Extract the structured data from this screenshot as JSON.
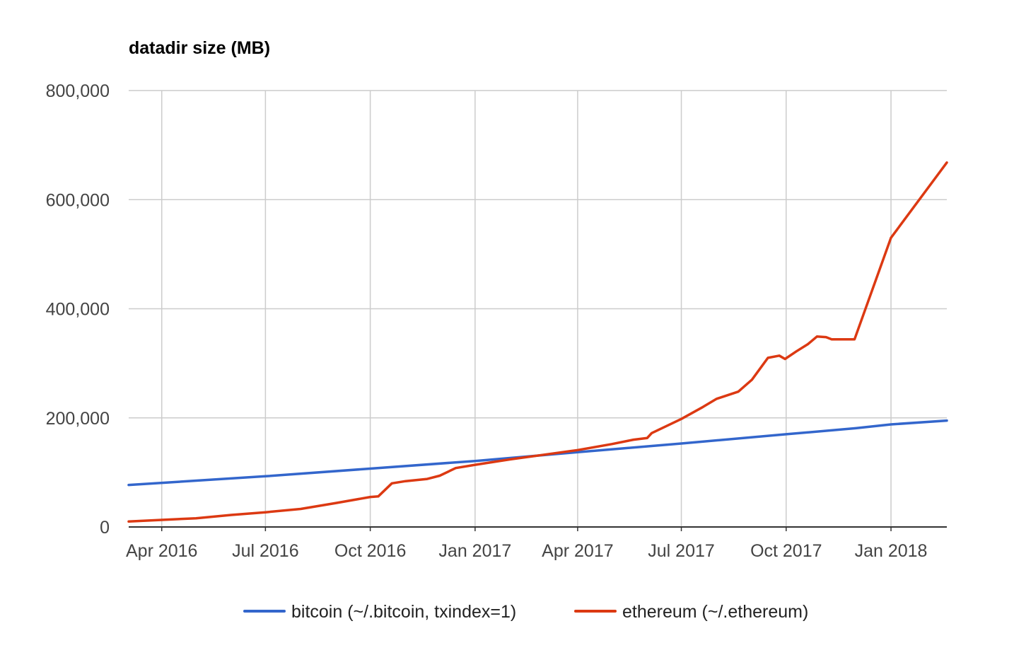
{
  "chart_data": {
    "type": "line",
    "title": "datadir size (MB)",
    "xlabel": "",
    "ylabel": "",
    "x_axis": {
      "type": "date",
      "range": [
        "2016-03-03",
        "2018-02-19"
      ],
      "ticks": [
        {
          "date": "2016-04-01",
          "label": "Apr 2016"
        },
        {
          "date": "2016-07-01",
          "label": "Jul 2016"
        },
        {
          "date": "2016-10-01",
          "label": "Oct 2016"
        },
        {
          "date": "2017-01-01",
          "label": "Jan 2017"
        },
        {
          "date": "2017-04-01",
          "label": "Apr 2017"
        },
        {
          "date": "2017-07-01",
          "label": "Jul 2017"
        },
        {
          "date": "2017-10-01",
          "label": "Oct 2017"
        },
        {
          "date": "2018-01-01",
          "label": "Jan 2018"
        }
      ]
    },
    "y_axis": {
      "range": [
        0,
        800000
      ],
      "ticks": [
        {
          "value": 0,
          "label": "0"
        },
        {
          "value": 200000,
          "label": "200,000"
        },
        {
          "value": 400000,
          "label": "400,000"
        },
        {
          "value": 600000,
          "label": "600,000"
        },
        {
          "value": 800000,
          "label": "800,000"
        }
      ]
    },
    "grid": true,
    "legend_position": "bottom",
    "series": [
      {
        "name": "bitcoin (~/.bitcoin, txindex=1)",
        "color": "#3366cc",
        "points": [
          {
            "x": "2016-03-03",
            "y": 77000
          },
          {
            "x": "2016-07-01",
            "y": 93000
          },
          {
            "x": "2016-10-01",
            "y": 107000
          },
          {
            "x": "2017-01-01",
            "y": 121000
          },
          {
            "x": "2017-04-01",
            "y": 137000
          },
          {
            "x": "2017-07-01",
            "y": 153000
          },
          {
            "x": "2017-10-01",
            "y": 170000
          },
          {
            "x": "2017-12-01",
            "y": 181000
          },
          {
            "x": "2018-01-01",
            "y": 188000
          },
          {
            "x": "2018-02-19",
            "y": 195000
          }
        ]
      },
      {
        "name": "ethereum (~/.ethereum)",
        "color": "#dc3912",
        "points": [
          {
            "x": "2016-03-03",
            "y": 10000
          },
          {
            "x": "2016-04-01",
            "y": 13000
          },
          {
            "x": "2016-05-01",
            "y": 16000
          },
          {
            "x": "2016-06-01",
            "y": 22000
          },
          {
            "x": "2016-07-01",
            "y": 27000
          },
          {
            "x": "2016-08-01",
            "y": 33000
          },
          {
            "x": "2016-09-01",
            "y": 44000
          },
          {
            "x": "2016-10-01",
            "y": 55000
          },
          {
            "x": "2016-10-08",
            "y": 56000
          },
          {
            "x": "2016-10-20",
            "y": 80000
          },
          {
            "x": "2016-11-01",
            "y": 84000
          },
          {
            "x": "2016-11-20",
            "y": 88000
          },
          {
            "x": "2016-12-01",
            "y": 94000
          },
          {
            "x": "2016-12-15",
            "y": 108000
          },
          {
            "x": "2017-01-01",
            "y": 114000
          },
          {
            "x": "2017-02-01",
            "y": 124000
          },
          {
            "x": "2017-03-01",
            "y": 132000
          },
          {
            "x": "2017-04-01",
            "y": 141000
          },
          {
            "x": "2017-05-01",
            "y": 152000
          },
          {
            "x": "2017-05-20",
            "y": 160000
          },
          {
            "x": "2017-06-01",
            "y": 163000
          },
          {
            "x": "2017-06-05",
            "y": 172000
          },
          {
            "x": "2017-07-01",
            "y": 198000
          },
          {
            "x": "2017-07-20",
            "y": 220000
          },
          {
            "x": "2017-08-01",
            "y": 235000
          },
          {
            "x": "2017-08-20",
            "y": 248000
          },
          {
            "x": "2017-09-01",
            "y": 270000
          },
          {
            "x": "2017-09-15",
            "y": 310000
          },
          {
            "x": "2017-09-25",
            "y": 314000
          },
          {
            "x": "2017-09-30",
            "y": 308000
          },
          {
            "x": "2017-10-10",
            "y": 322000
          },
          {
            "x": "2017-10-20",
            "y": 335000
          },
          {
            "x": "2017-10-28",
            "y": 349000
          },
          {
            "x": "2017-11-05",
            "y": 348000
          },
          {
            "x": "2017-11-10",
            "y": 344000
          },
          {
            "x": "2017-11-30",
            "y": 344000
          },
          {
            "x": "2018-01-01",
            "y": 530000
          },
          {
            "x": "2018-02-19",
            "y": 668000
          }
        ]
      }
    ]
  }
}
